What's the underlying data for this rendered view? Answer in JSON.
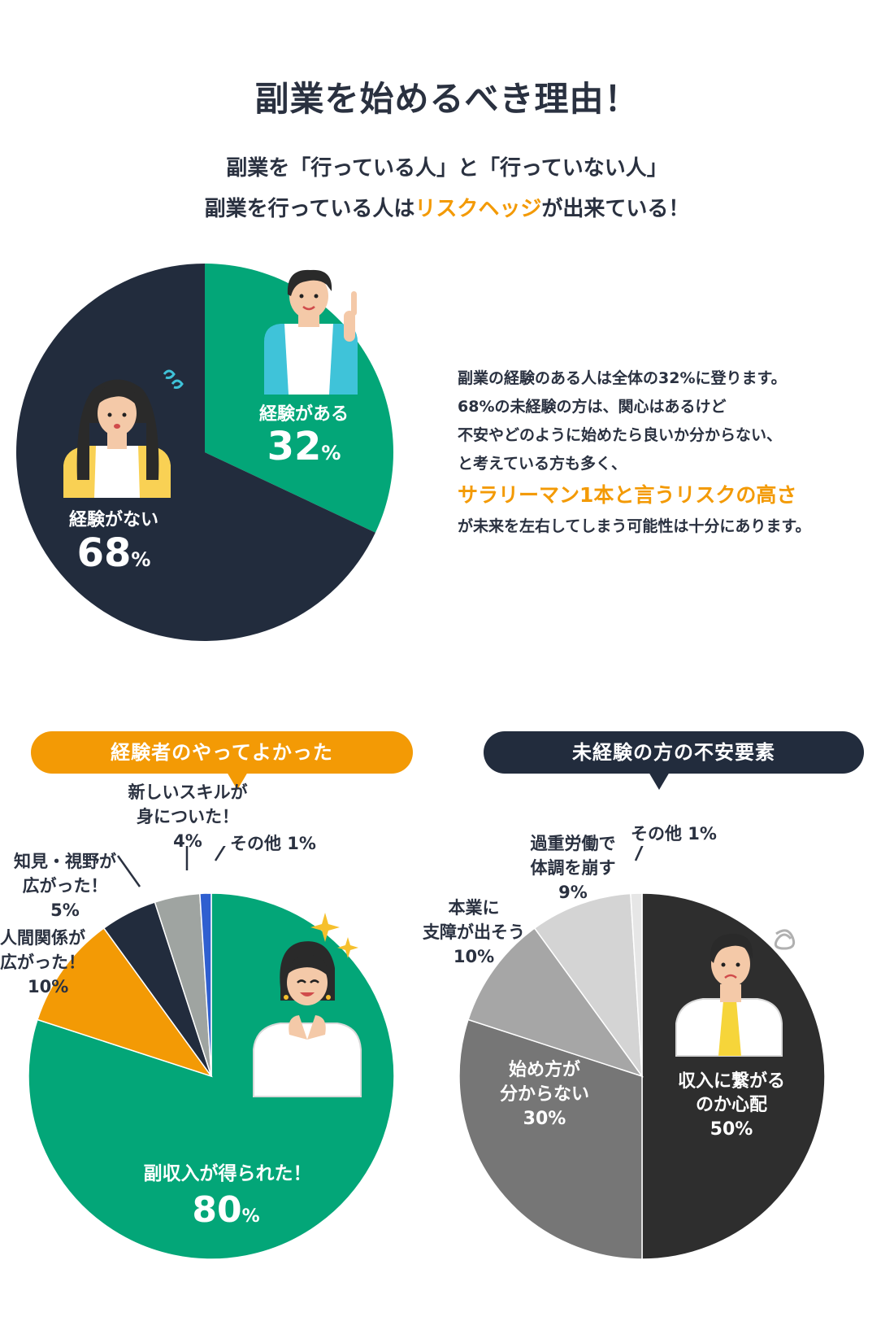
{
  "title": "副業を始めるべき理由！",
  "subtitle": {
    "line1": "副業を「行っている人」と「行っていない人」",
    "line2_pre": "副業を行っている人は",
    "line2_hl": "リスクヘッジ",
    "line2_post": "が出来ている！"
  },
  "description": {
    "lines": [
      "副業の経験のある人は全体の32%に登ります。",
      "68%の未経験の方は、関心はあるけど",
      "不安やどのように始めたら良いか分からない、",
      "と考えている方も多く、"
    ],
    "highlight": "サラリーマン1本と言うリスクの高さ",
    "last": "が未来を左右してしまう可能性は十分にあります。"
  },
  "colors": {
    "green": "#03a678",
    "navy": "#222c3d",
    "orange": "#f39a05",
    "gray": "#9fa4a1",
    "blue": "#2f5fd0",
    "dark": "#2e2e2e",
    "mid_gray": "#767676",
    "light_gray": "#a6a6a6",
    "lighter_gray": "#d4d4d4",
    "palest_gray": "#e6e6e6"
  },
  "chart_data": [
    {
      "type": "pie",
      "slices": [
        {
          "label": "経験がある",
          "value": 32,
          "value_text": "32",
          "unit": "%",
          "color": "#03a678"
        },
        {
          "label": "経験がない",
          "value": 68,
          "value_text": "68",
          "unit": "%",
          "color": "#222c3d"
        }
      ]
    },
    {
      "type": "pie",
      "title": "経験者のやってよかった",
      "slices": [
        {
          "label": "副収入が得られた！",
          "value": 80,
          "value_text": "80",
          "unit": "%",
          "color": "#03a678"
        },
        {
          "label": "人間関係が広がった！",
          "label_lines": [
            "人間関係が",
            "広がった！",
            "10%"
          ],
          "value": 10,
          "color": "#f39a05"
        },
        {
          "label": "知見・視野が広がった！",
          "label_lines": [
            "知見・視野が",
            "広がった！",
            "5%"
          ],
          "value": 5,
          "color": "#222c3d"
        },
        {
          "label": "新しいスキルが身についた！",
          "label_lines": [
            "新しいスキルが",
            "身についた！",
            "4%"
          ],
          "value": 4,
          "color": "#9fa4a1"
        },
        {
          "label": "その他",
          "label_lines": [
            "その他 1%"
          ],
          "value": 1,
          "color": "#2f5fd0"
        }
      ]
    },
    {
      "type": "pie",
      "title": "未経験の方の不安要素",
      "slices": [
        {
          "label": "収入に繋がるのか心配",
          "label_lines": [
            "収入に繋がる",
            "のか心配",
            "50%"
          ],
          "value": 50,
          "color": "#2e2e2e"
        },
        {
          "label": "始め方が分からない",
          "label_lines": [
            "始め方が",
            "分からない",
            "30%"
          ],
          "value": 30,
          "color": "#767676"
        },
        {
          "label": "本業に支障が出そう",
          "label_lines": [
            "本業に",
            "支障が出そう",
            "10%"
          ],
          "value": 10,
          "color": "#a6a6a6"
        },
        {
          "label": "過重労働で体調を崩す",
          "label_lines": [
            "過重労働で",
            "体調を崩す",
            "9%"
          ],
          "value": 9,
          "color": "#d4d4d4"
        },
        {
          "label": "その他",
          "label_lines": [
            "その他 1%"
          ],
          "value": 1,
          "color": "#e6e6e6"
        }
      ]
    }
  ]
}
